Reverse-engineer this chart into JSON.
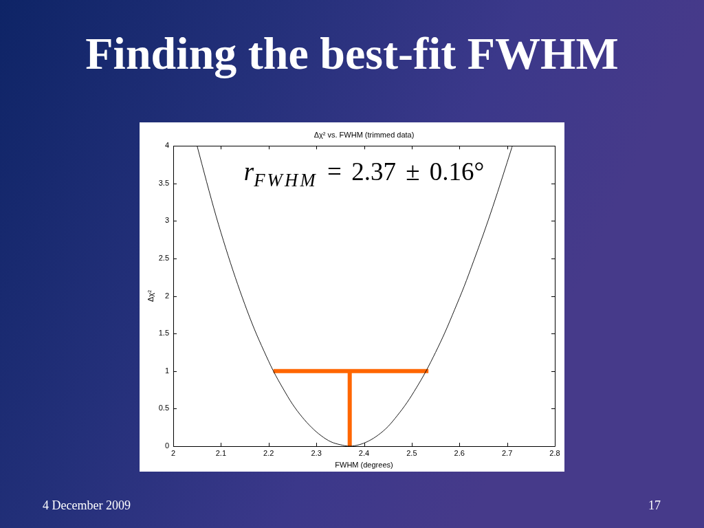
{
  "chart_data": {
    "type": "line",
    "title": "Finding the best-fit FWHM",
    "subtitle": "Δχ² vs. FWHM (trimmed data)",
    "xlabel": "FWHM (degrees)",
    "ylabel": "Δχ²",
    "annotations": [
      "r$_{FWHM}$ = 2.37 ± 0.16°",
      "4 December 2009",
      "17"
    ],
    "series": [
      {
        "color": "#000000",
        "x": [
          2.05,
          2.07,
          2.09,
          2.11,
          2.13,
          2.15,
          2.17,
          2.19,
          2.21,
          2.23,
          2.25,
          2.27,
          2.29,
          2.31,
          2.33,
          2.35,
          2.37,
          2.39,
          2.41,
          2.43,
          2.45,
          2.47,
          2.49,
          2.51,
          2.53,
          2.55,
          2.57,
          2.59,
          2.61,
          2.63,
          2.65,
          2.67,
          2.69,
          2.71,
          2.711
        ],
        "values": [
          4.0,
          3.52,
          3.06,
          2.64,
          2.25,
          1.89,
          1.56,
          1.27,
          1.0,
          0.77,
          0.56,
          0.39,
          0.25,
          0.14,
          0.06,
          0.02,
          0,
          0.02,
          0.07,
          0.15,
          0.26,
          0.41,
          0.58,
          0.78,
          1.0,
          1.25,
          1.52,
          1.82,
          2.13,
          2.47,
          2.82,
          3.19,
          3.58,
          3.98,
          4.0
        ]
      },
      {
        "color": "#ff6600",
        "x": [
          2.21,
          2.535
        ],
        "values": [
          1,
          1
        ]
      },
      {
        "color": "#ff6600",
        "x": [
          2.37,
          2.37
        ],
        "values": [
          0,
          1
        ]
      }
    ],
    "xlim": [
      2,
      2.8
    ],
    "xticks": [
      2,
      2.1,
      2.2,
      2.3,
      2.4,
      2.5,
      2.6,
      2.7,
      2.8
    ],
    "ylim": [
      0,
      4
    ],
    "yticks": [
      0,
      0.5,
      1,
      1.5,
      2,
      2.5,
      3,
      3.5,
      4
    ],
    "grid": false,
    "legend": false,
    "marker": "none",
    "line_style": "solid"
  }
}
